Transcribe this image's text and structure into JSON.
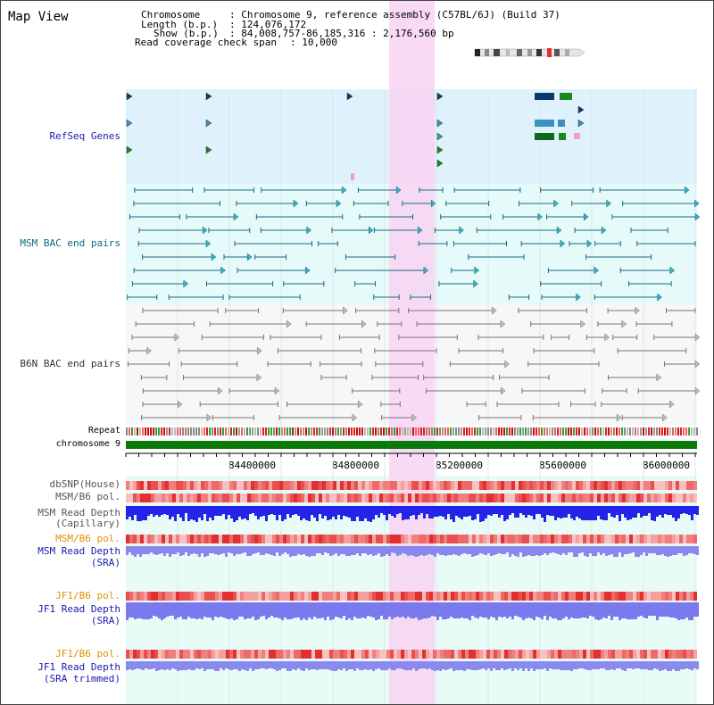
{
  "map_title": "Map View",
  "header": {
    "chromosome_key": "Chromosome",
    "chromosome_val": ": Chromosome 9, reference assembly (C57BL/6J) (Build 37)",
    "length_key": "Length (b.p.)",
    "length_val": ": 124,076,172",
    "show_key": "Show (b.p.)",
    "show_val": ": 84,008,757-86,185,316 : 2,176,560 bp",
    "span_key": "Read coverage check span",
    "span_val": ": 10,000"
  },
  "tracks": {
    "refseq": "RefSeq Genes",
    "msm_bac": "MSM BAC end pairs",
    "b6n_bac": "B6N BAC end pairs",
    "repeat": "Repeat",
    "chromosome": "chromosome 9",
    "dbsnp": "dbSNP(House)",
    "msm_b6_pol_1": "MSM/B6 pol.",
    "msm_read_depth_cap_1": "MSM Read Depth",
    "msm_read_depth_cap_2": "(Capillary)",
    "msm_b6_pol_2": "MSM/B6 pol.",
    "msm_read_depth_sra_1": "MSM Read Depth",
    "msm_read_depth_sra_2": "(SRA)",
    "jf1_b6_pol_1": "JF1/B6 pol.",
    "jf1_read_depth_sra_1": "JF1 Read Depth",
    "jf1_read_depth_sra_2": "(SRA)",
    "jf1_b6_pol_2": "JF1/B6 pol.",
    "jf1_read_depth_trim_1": "JF1 Read Depth",
    "jf1_read_depth_trim_2": "(SRA trimmed)"
  },
  "axis_ticks": [
    "84400000",
    "84800000",
    "85200000",
    "85600000",
    "86000000"
  ],
  "colors": {
    "refseq_bg": "#dff1fb",
    "msm_bg": "#e6fafa",
    "b6n_bg": "#f6f6f6",
    "highlight": "#f7d6f3",
    "chromosome": "#0a7a0a",
    "navy_label": "#1a1aaa",
    "orange_label": "#e09000",
    "teal_label": "#0a6a80"
  }
}
